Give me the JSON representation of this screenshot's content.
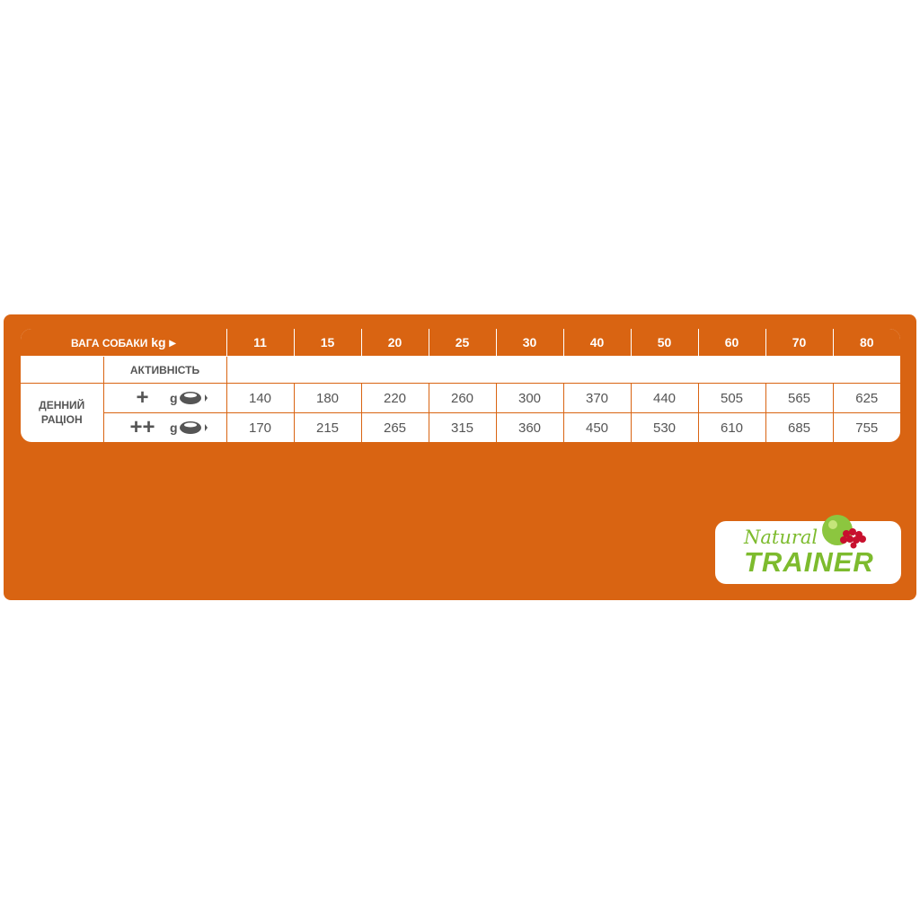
{
  "table": {
    "header_label": "Вага собаки",
    "header_unit": "kg",
    "weights": [
      "11",
      "15",
      "20",
      "25",
      "30",
      "40",
      "50",
      "60",
      "70",
      "80"
    ],
    "activity_label": "Активність",
    "ration_label_1": "Денний",
    "ration_label_2": "раціон",
    "unit": "g",
    "rows": [
      {
        "activity": "+",
        "values": [
          "140",
          "180",
          "220",
          "260",
          "300",
          "370",
          "440",
          "505",
          "565",
          "625"
        ]
      },
      {
        "activity": "++",
        "values": [
          "170",
          "215",
          "265",
          "315",
          "360",
          "450",
          "530",
          "610",
          "685",
          "755"
        ]
      }
    ]
  },
  "logo": {
    "line1": "Natural",
    "line2": "TRAINER"
  },
  "colors": {
    "brand_orange": "#D96412",
    "logo_green": "#7DBB2E"
  }
}
